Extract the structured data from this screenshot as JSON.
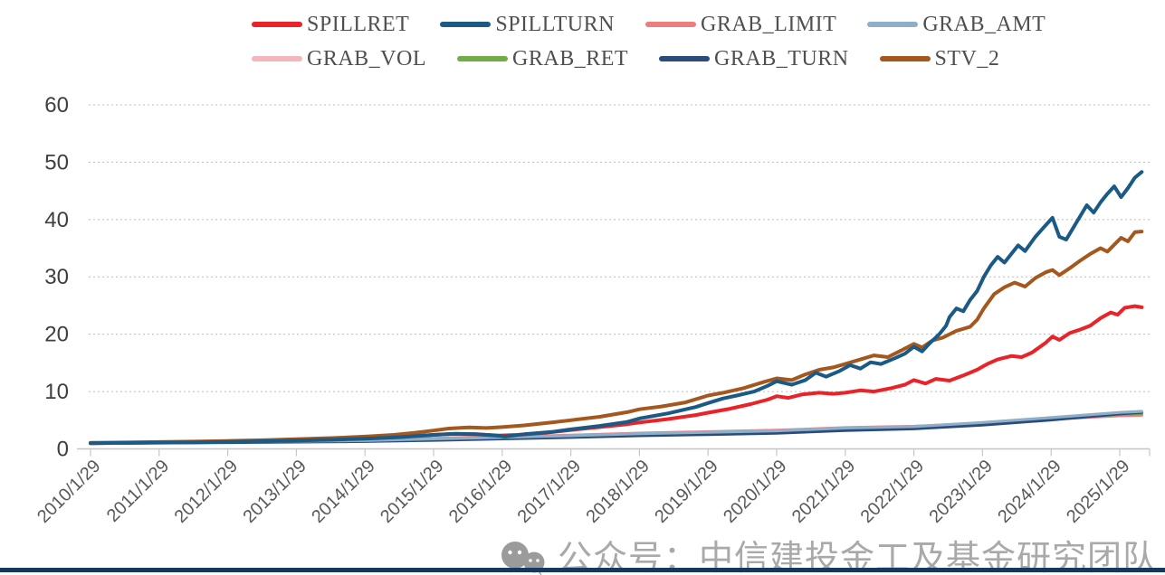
{
  "chart_data": {
    "type": "line",
    "title": "",
    "xlabel": "",
    "ylabel": "",
    "grid": "horizontal-dotted",
    "legend_position": "top",
    "ylim": [
      0,
      60
    ],
    "y_ticks": [
      0,
      10,
      20,
      30,
      40,
      50,
      60
    ],
    "x_tick_labels": [
      "2010/1/29",
      "2011/1/29",
      "2012/1/29",
      "2013/1/29",
      "2014/1/29",
      "2015/1/29",
      "2016/1/29",
      "2017/1/29",
      "2018/1/29",
      "2019/1/29",
      "2020/1/29",
      "2021/1/29",
      "2022/1/29",
      "2023/1/29",
      "2024/1/29",
      "2025/1/29"
    ],
    "x_range_decimal_years": [
      2010.08,
      2025.4
    ],
    "legend_rows": [
      [
        "SPILLRET",
        "SPILLTURN",
        "GRAB_LIMIT",
        "GRAB_AMT"
      ],
      [
        "GRAB_VOL",
        "GRAB_RET",
        "GRAB_TURN",
        "STV_2"
      ]
    ],
    "series": [
      {
        "name": "SPILLRET",
        "color": "#ea2328",
        "width": 4,
        "points": [
          [
            2010.08,
            1.0
          ],
          [
            2010.5,
            1.03
          ],
          [
            2011.08,
            1.12
          ],
          [
            2011.6,
            1.18
          ],
          [
            2012.08,
            1.28
          ],
          [
            2012.6,
            1.38
          ],
          [
            2013.08,
            1.52
          ],
          [
            2013.6,
            1.68
          ],
          [
            2014.08,
            1.88
          ],
          [
            2014.6,
            2.1
          ],
          [
            2015.08,
            2.45
          ],
          [
            2015.35,
            2.6
          ],
          [
            2015.7,
            2.55
          ],
          [
            2016.0,
            2.3
          ],
          [
            2016.3,
            2.45
          ],
          [
            2016.7,
            2.8
          ],
          [
            2017.08,
            3.3
          ],
          [
            2017.5,
            3.8
          ],
          [
            2017.9,
            4.3
          ],
          [
            2018.08,
            4.6
          ],
          [
            2018.5,
            5.2
          ],
          [
            2018.9,
            5.9
          ],
          [
            2019.08,
            6.3
          ],
          [
            2019.4,
            7.0
          ],
          [
            2019.7,
            7.8
          ],
          [
            2019.95,
            8.6
          ],
          [
            2020.08,
            9.2
          ],
          [
            2020.25,
            8.9
          ],
          [
            2020.45,
            9.5
          ],
          [
            2020.7,
            9.8
          ],
          [
            2020.9,
            9.6
          ],
          [
            2021.08,
            9.8
          ],
          [
            2021.3,
            10.2
          ],
          [
            2021.5,
            10.0
          ],
          [
            2021.75,
            10.6
          ],
          [
            2021.95,
            11.2
          ],
          [
            2022.08,
            12.0
          ],
          [
            2022.25,
            11.4
          ],
          [
            2022.4,
            12.2
          ],
          [
            2022.6,
            11.9
          ],
          [
            2022.8,
            12.8
          ],
          [
            2023.0,
            13.8
          ],
          [
            2023.15,
            14.8
          ],
          [
            2023.3,
            15.6
          ],
          [
            2023.5,
            16.2
          ],
          [
            2023.65,
            16.0
          ],
          [
            2023.8,
            16.8
          ],
          [
            2024.0,
            18.5
          ],
          [
            2024.1,
            19.6
          ],
          [
            2024.2,
            19.0
          ],
          [
            2024.35,
            20.2
          ],
          [
            2024.5,
            20.8
          ],
          [
            2024.65,
            21.5
          ],
          [
            2024.8,
            22.8
          ],
          [
            2024.95,
            23.8
          ],
          [
            2025.05,
            23.4
          ],
          [
            2025.15,
            24.6
          ],
          [
            2025.3,
            24.9
          ],
          [
            2025.4,
            24.7
          ]
        ]
      },
      {
        "name": "SPILLTURN",
        "color": "#1a5a85",
        "width": 4,
        "points": [
          [
            2010.08,
            1.0
          ],
          [
            2010.6,
            1.05
          ],
          [
            2011.08,
            1.1
          ],
          [
            2011.6,
            1.15
          ],
          [
            2012.08,
            1.22
          ],
          [
            2012.6,
            1.32
          ],
          [
            2013.08,
            1.45
          ],
          [
            2013.6,
            1.6
          ],
          [
            2014.08,
            1.78
          ],
          [
            2014.6,
            2.05
          ],
          [
            2015.08,
            2.45
          ],
          [
            2015.4,
            2.65
          ],
          [
            2015.7,
            2.55
          ],
          [
            2016.0,
            2.35
          ],
          [
            2016.12,
            2.15
          ],
          [
            2016.4,
            2.55
          ],
          [
            2016.8,
            2.95
          ],
          [
            2017.08,
            3.4
          ],
          [
            2017.5,
            4.0
          ],
          [
            2017.9,
            4.7
          ],
          [
            2018.08,
            5.3
          ],
          [
            2018.5,
            6.2
          ],
          [
            2018.9,
            7.3
          ],
          [
            2019.08,
            8.0
          ],
          [
            2019.3,
            8.8
          ],
          [
            2019.5,
            9.3
          ],
          [
            2019.75,
            10.0
          ],
          [
            2019.95,
            11.0
          ],
          [
            2020.08,
            11.8
          ],
          [
            2020.3,
            11.2
          ],
          [
            2020.5,
            12.0
          ],
          [
            2020.65,
            13.3
          ],
          [
            2020.8,
            12.6
          ],
          [
            2021.0,
            13.6
          ],
          [
            2021.15,
            14.6
          ],
          [
            2021.3,
            14.0
          ],
          [
            2021.45,
            15.1
          ],
          [
            2021.6,
            14.8
          ],
          [
            2021.8,
            15.8
          ],
          [
            2021.95,
            16.6
          ],
          [
            2022.08,
            17.8
          ],
          [
            2022.2,
            17.0
          ],
          [
            2022.3,
            18.3
          ],
          [
            2022.45,
            20.0
          ],
          [
            2022.55,
            21.5
          ],
          [
            2022.6,
            23.0
          ],
          [
            2022.7,
            24.5
          ],
          [
            2022.8,
            24.0
          ],
          [
            2022.9,
            26.0
          ],
          [
            2023.0,
            27.5
          ],
          [
            2023.1,
            30.0
          ],
          [
            2023.2,
            32.0
          ],
          [
            2023.3,
            33.5
          ],
          [
            2023.4,
            32.5
          ],
          [
            2023.5,
            34.0
          ],
          [
            2023.6,
            35.5
          ],
          [
            2023.7,
            34.5
          ],
          [
            2023.85,
            37.0
          ],
          [
            2024.0,
            39.0
          ],
          [
            2024.1,
            40.3
          ],
          [
            2024.2,
            37.0
          ],
          [
            2024.3,
            36.5
          ],
          [
            2024.45,
            39.5
          ],
          [
            2024.6,
            42.5
          ],
          [
            2024.7,
            41.2
          ],
          [
            2024.8,
            43.0
          ],
          [
            2024.9,
            44.5
          ],
          [
            2025.0,
            45.8
          ],
          [
            2025.1,
            43.9
          ],
          [
            2025.2,
            45.5
          ],
          [
            2025.3,
            47.3
          ],
          [
            2025.4,
            48.3
          ]
        ]
      },
      {
        "name": "GRAB_LIMIT",
        "color": "#ee7d80",
        "width": 3.2,
        "points": [
          [
            2010.08,
            1.0
          ],
          [
            2011.08,
            1.12
          ],
          [
            2012.08,
            1.25
          ],
          [
            2013.08,
            1.4
          ],
          [
            2014.08,
            1.55
          ],
          [
            2015.08,
            1.85
          ],
          [
            2016.08,
            2.1
          ],
          [
            2017.08,
            2.4
          ],
          [
            2018.08,
            2.75
          ],
          [
            2019.08,
            3.0
          ],
          [
            2020.08,
            3.25
          ],
          [
            2021.08,
            3.7
          ],
          [
            2022.08,
            3.95
          ],
          [
            2023.08,
            4.5
          ],
          [
            2024.08,
            5.2
          ],
          [
            2025.08,
            5.8
          ],
          [
            2025.4,
            5.9
          ]
        ]
      },
      {
        "name": "GRAB_AMT",
        "color": "#8fafc9",
        "width": 3.2,
        "points": [
          [
            2010.08,
            1.0
          ],
          [
            2011.08,
            1.1
          ],
          [
            2012.08,
            1.2
          ],
          [
            2013.08,
            1.35
          ],
          [
            2014.08,
            1.45
          ],
          [
            2015.08,
            1.75
          ],
          [
            2016.08,
            2.0
          ],
          [
            2017.08,
            2.3
          ],
          [
            2018.08,
            2.65
          ],
          [
            2019.08,
            2.9
          ],
          [
            2020.08,
            3.15
          ],
          [
            2021.08,
            3.65
          ],
          [
            2022.08,
            3.9
          ],
          [
            2023.08,
            4.6
          ],
          [
            2024.08,
            5.45
          ],
          [
            2025.08,
            6.35
          ],
          [
            2025.4,
            6.55
          ]
        ]
      },
      {
        "name": "GRAB_VOL",
        "color": "#f5b5bd",
        "width": 3.2,
        "points": [
          [
            2010.08,
            1.0
          ],
          [
            2011.08,
            1.1
          ],
          [
            2012.08,
            1.2
          ],
          [
            2013.08,
            1.35
          ],
          [
            2014.08,
            1.5
          ],
          [
            2015.08,
            1.8
          ],
          [
            2016.08,
            2.05
          ],
          [
            2017.08,
            2.35
          ],
          [
            2018.08,
            2.7
          ],
          [
            2019.08,
            2.95
          ],
          [
            2020.08,
            3.2
          ],
          [
            2021.08,
            3.6
          ],
          [
            2022.08,
            3.85
          ],
          [
            2023.08,
            4.45
          ],
          [
            2024.08,
            5.15
          ],
          [
            2025.08,
            5.75
          ],
          [
            2025.4,
            5.85
          ]
        ]
      },
      {
        "name": "GRAB_RET",
        "color": "#6fad49",
        "width": 3.2,
        "points": [
          [
            2010.08,
            1.0
          ],
          [
            2011.08,
            1.08
          ],
          [
            2012.08,
            1.15
          ],
          [
            2013.08,
            1.28
          ],
          [
            2014.08,
            1.4
          ],
          [
            2015.08,
            1.65
          ],
          [
            2016.08,
            1.9
          ],
          [
            2017.08,
            2.2
          ],
          [
            2018.08,
            2.5
          ],
          [
            2019.08,
            2.75
          ],
          [
            2020.08,
            3.0
          ],
          [
            2021.08,
            3.45
          ],
          [
            2022.08,
            3.7
          ],
          [
            2023.08,
            4.35
          ],
          [
            2024.08,
            5.2
          ],
          [
            2025.08,
            6.0
          ],
          [
            2025.4,
            6.15
          ]
        ]
      },
      {
        "name": "GRAB_TURN",
        "color": "#2c4b7d",
        "width": 3.2,
        "points": [
          [
            2010.08,
            0.95
          ],
          [
            2011.08,
            1.02
          ],
          [
            2012.08,
            1.1
          ],
          [
            2013.08,
            1.2
          ],
          [
            2014.08,
            1.3
          ],
          [
            2015.08,
            1.5
          ],
          [
            2016.08,
            1.75
          ],
          [
            2017.08,
            2.0
          ],
          [
            2018.08,
            2.3
          ],
          [
            2019.08,
            2.5
          ],
          [
            2020.08,
            2.75
          ],
          [
            2021.08,
            3.2
          ],
          [
            2022.08,
            3.5
          ],
          [
            2023.08,
            4.15
          ],
          [
            2024.08,
            5.05
          ],
          [
            2025.08,
            6.1
          ],
          [
            2025.4,
            6.35
          ]
        ]
      },
      {
        "name": "STV_2",
        "color": "#a4581d",
        "width": 4,
        "points": [
          [
            2010.08,
            1.05
          ],
          [
            2010.6,
            1.12
          ],
          [
            2011.08,
            1.2
          ],
          [
            2011.6,
            1.28
          ],
          [
            2012.08,
            1.38
          ],
          [
            2012.6,
            1.52
          ],
          [
            2013.08,
            1.68
          ],
          [
            2013.6,
            1.9
          ],
          [
            2014.08,
            2.15
          ],
          [
            2014.5,
            2.45
          ],
          [
            2014.8,
            2.8
          ],
          [
            2015.08,
            3.2
          ],
          [
            2015.3,
            3.55
          ],
          [
            2015.6,
            3.75
          ],
          [
            2015.85,
            3.65
          ],
          [
            2016.08,
            3.8
          ],
          [
            2016.4,
            4.1
          ],
          [
            2016.8,
            4.6
          ],
          [
            2017.08,
            5.0
          ],
          [
            2017.5,
            5.6
          ],
          [
            2017.9,
            6.4
          ],
          [
            2018.08,
            6.9
          ],
          [
            2018.4,
            7.4
          ],
          [
            2018.75,
            8.1
          ],
          [
            2019.08,
            9.3
          ],
          [
            2019.3,
            9.8
          ],
          [
            2019.6,
            10.6
          ],
          [
            2019.9,
            11.7
          ],
          [
            2020.08,
            12.3
          ],
          [
            2020.3,
            12.0
          ],
          [
            2020.5,
            13.0
          ],
          [
            2020.7,
            13.8
          ],
          [
            2020.9,
            14.2
          ],
          [
            2021.08,
            14.8
          ],
          [
            2021.3,
            15.6
          ],
          [
            2021.5,
            16.3
          ],
          [
            2021.7,
            16.0
          ],
          [
            2021.9,
            17.2
          ],
          [
            2022.08,
            18.3
          ],
          [
            2022.2,
            17.7
          ],
          [
            2022.35,
            18.9
          ],
          [
            2022.5,
            19.4
          ],
          [
            2022.7,
            20.6
          ],
          [
            2022.9,
            21.3
          ],
          [
            2023.0,
            22.5
          ],
          [
            2023.1,
            24.5
          ],
          [
            2023.25,
            27.0
          ],
          [
            2023.4,
            28.2
          ],
          [
            2023.55,
            29.0
          ],
          [
            2023.7,
            28.3
          ],
          [
            2023.85,
            29.8
          ],
          [
            2024.0,
            30.8
          ],
          [
            2024.1,
            31.2
          ],
          [
            2024.2,
            30.3
          ],
          [
            2024.35,
            31.5
          ],
          [
            2024.5,
            32.8
          ],
          [
            2024.65,
            34.0
          ],
          [
            2024.8,
            35.0
          ],
          [
            2024.9,
            34.4
          ],
          [
            2025.0,
            35.6
          ],
          [
            2025.1,
            36.8
          ],
          [
            2025.2,
            36.2
          ],
          [
            2025.3,
            37.8
          ],
          [
            2025.4,
            37.9
          ]
        ]
      }
    ]
  },
  "axis_colors": {
    "grid": "#bcbcbc",
    "axis": "#c6c6c6",
    "y_tick_label": "#3f3f3f",
    "x_tick_label": "#595959",
    "legend_text": "#4f4f4f"
  },
  "watermark": {
    "text": "公众号：中信建投金工及基金研究团队",
    "icon": "wechat-icon",
    "color": "#a9a9a9"
  },
  "footer": {
    "bar_color": "#17375e"
  }
}
